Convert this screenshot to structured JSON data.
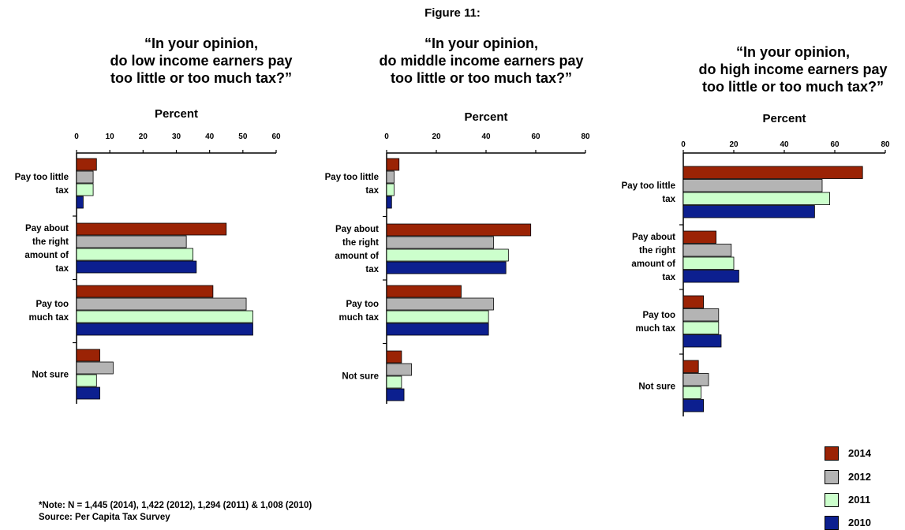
{
  "figure_title": "Figure 11:",
  "colors": {
    "2014": "#9b2305",
    "2012": "#b4b4b4",
    "2011": "#ccffcc",
    "2010": "#0c1f8f"
  },
  "legend": [
    "2014",
    "2012",
    "2011",
    "2010"
  ],
  "note": "*Note: N = 1,445 (2014), 1,422 (2012), 1,294 (2011) & 1,008 (2010)",
  "source": "Source: Per Capita Tax Survey",
  "chart_data": [
    {
      "type": "bar",
      "orientation": "horizontal",
      "title_lines": [
        "“In your opinion,",
        "do low income earners pay",
        "too little or too much tax?”"
      ],
      "xlabel": "Percent",
      "xlim": [
        0,
        60
      ],
      "xticks": [
        "0",
        "10",
        "20",
        "30",
        "40",
        "50",
        "60"
      ],
      "categories": [
        [
          "Pay too little",
          "tax"
        ],
        [
          "Pay about",
          "the right",
          "amount of",
          "tax"
        ],
        [
          "Pay too",
          "much tax"
        ],
        [
          "Not sure"
        ]
      ],
      "series": [
        {
          "name": "2014",
          "values": [
            6,
            45,
            41,
            7
          ]
        },
        {
          "name": "2012",
          "values": [
            5,
            33,
            51,
            11
          ]
        },
        {
          "name": "2011",
          "values": [
            5,
            35,
            53,
            6
          ]
        },
        {
          "name": "2010",
          "values": [
            2,
            36,
            53,
            7
          ]
        }
      ]
    },
    {
      "type": "bar",
      "orientation": "horizontal",
      "title_lines": [
        "“In your opinion,",
        "do middle income earners pay",
        "too little or too much tax?”"
      ],
      "xlabel": "Percent",
      "xlim": [
        0,
        80
      ],
      "xticks": [
        "0",
        "20",
        "40",
        "60",
        "80"
      ],
      "categories": [
        [
          "Pay too little",
          "tax"
        ],
        [
          "Pay about",
          "the right",
          "amount of",
          "tax"
        ],
        [
          "Pay too",
          "much tax"
        ],
        [
          "Not sure"
        ]
      ],
      "series": [
        {
          "name": "2014",
          "values": [
            5,
            58,
            30,
            6
          ]
        },
        {
          "name": "2012",
          "values": [
            3,
            43,
            43,
            10
          ]
        },
        {
          "name": "2011",
          "values": [
            3,
            49,
            41,
            6
          ]
        },
        {
          "name": "2010",
          "values": [
            2,
            48,
            41,
            7
          ]
        }
      ]
    },
    {
      "type": "bar",
      "orientation": "horizontal",
      "title_lines": [
        "“In your opinion,",
        "do high income earners pay",
        "too little or too much tax?”"
      ],
      "xlabel": "Percent",
      "xlim": [
        0,
        80
      ],
      "xticks": [
        "0",
        "20",
        "40",
        "60",
        "80"
      ],
      "categories": [
        [
          "Pay too little",
          "tax"
        ],
        [
          "Pay about",
          "the right",
          "amount of",
          "tax"
        ],
        [
          "Pay too",
          "much tax"
        ],
        [
          "Not sure"
        ]
      ],
      "series": [
        {
          "name": "2014",
          "values": [
            71,
            13,
            8,
            6
          ]
        },
        {
          "name": "2012",
          "values": [
            55,
            19,
            14,
            10
          ]
        },
        {
          "name": "2011",
          "values": [
            58,
            20,
            14,
            7
          ]
        },
        {
          "name": "2010",
          "values": [
            52,
            22,
            15,
            8
          ]
        }
      ]
    }
  ]
}
